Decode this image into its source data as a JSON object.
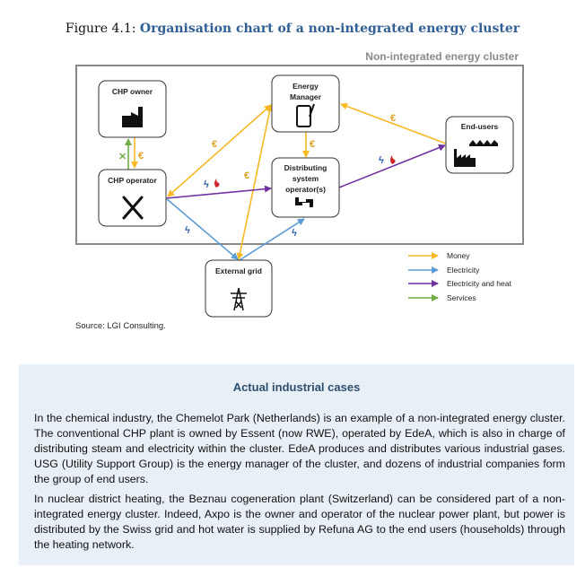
{
  "figure": {
    "prefix": "Figure 4.1: ",
    "title": "Organisation chart of a non-integrated energy cluster",
    "cluster_label": "Non-integrated energy cluster",
    "source": "Source: LGI Consulting."
  },
  "nodes": {
    "chp_owner": "CHP owner",
    "chp_operator": "CHP operator",
    "energy_manager": [
      "Energy",
      "Manager"
    ],
    "dso": [
      "Distributing",
      "system",
      "operator(s)"
    ],
    "end_users": "End-users",
    "external_grid": "External grid"
  },
  "flow_symbols": {
    "money": "€",
    "electricity": "ϟ"
  },
  "legend": [
    {
      "label": "Money",
      "color": "#f7b924"
    },
    {
      "label": "Electricity",
      "color": "#5b9bd5"
    },
    {
      "label": "Electricity and heat",
      "color": "#7030a0"
    },
    {
      "label": "Services",
      "color": "#70ad47"
    }
  ],
  "case_box": {
    "title": "Actual industrial cases",
    "paragraphs": [
      "In the chemical industry, the Chemelot Park (Netherlands) is an example of a non-integrated energy cluster. The conventional CHP plant is owned by Essent (now RWE), operated by EdeA, which is also in charge of distributing steam and electricity within the cluster. EdeA produces and distributes various industrial gases. USG (Utility Support Group) is the energy manager of the cluster, and dozens of industrial companies form the group of end users.",
      "In nuclear district heating, the Beznau cogeneration plant (Switzerland) can be considered part of a non-integrated energy cluster. Indeed, Axpo is the owner and operator of the nuclear power plant, but power is distributed by the Swiss grid and hot water is supplied by Refuna AG to the end users (households) through the heating network."
    ]
  }
}
